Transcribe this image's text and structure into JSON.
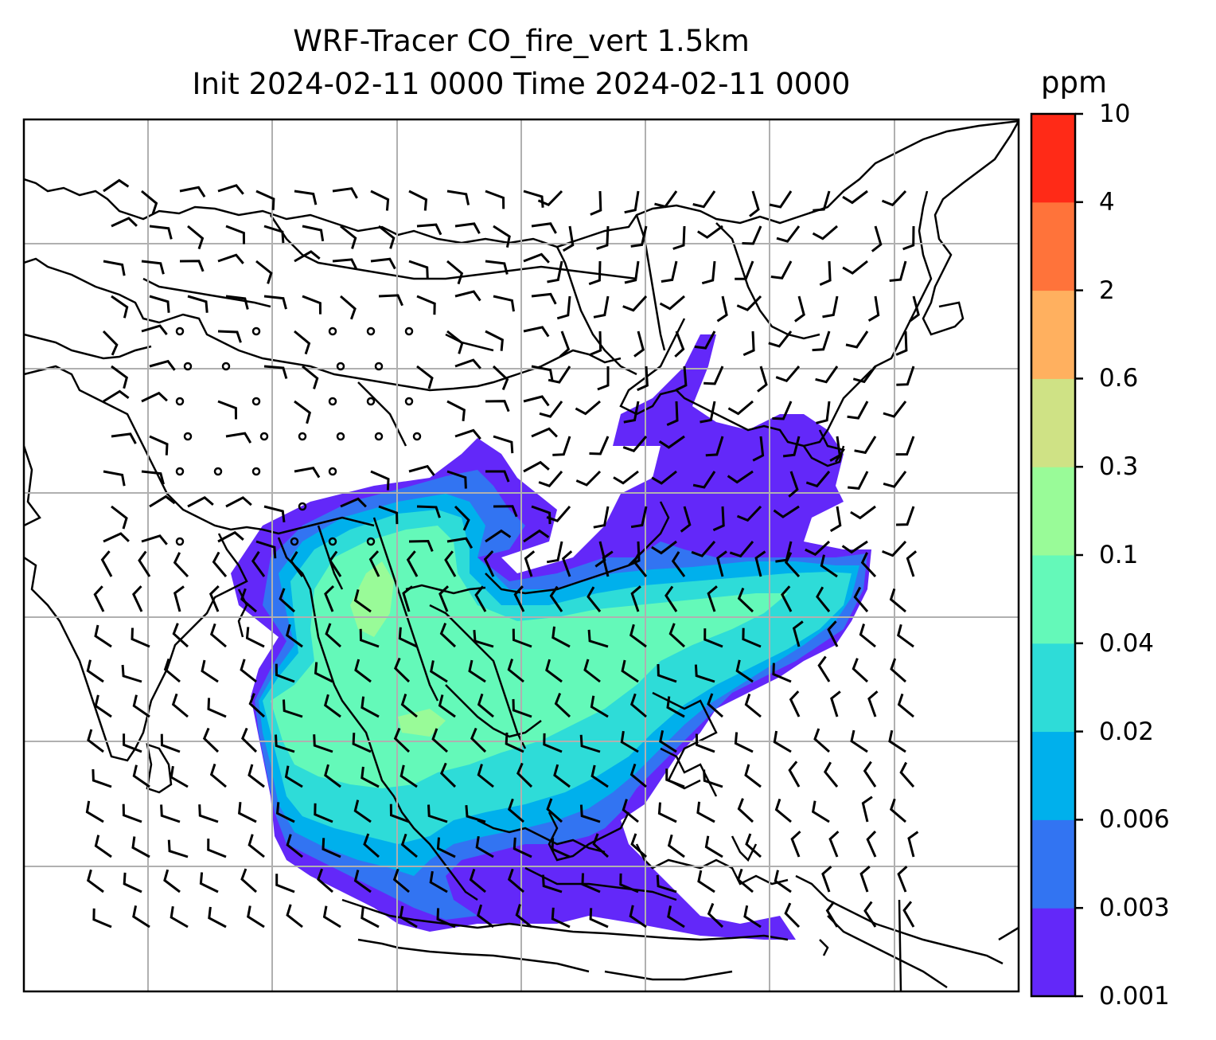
{
  "title": {
    "line1": "WRF-Tracer CO_fire_vert 1.5km",
    "line2": "Init 2024-02-11 0000 Time 2024-02-11 0000"
  },
  "colorbar": {
    "unit": "ppm",
    "levels": [
      "0.001",
      "0.003",
      "0.006",
      "0.02",
      "0.04",
      "0.1",
      "0.3",
      "0.6",
      "2",
      "4",
      "10"
    ],
    "colors": [
      "#6328f9",
      "#3274f2",
      "#00b0ec",
      "#2edcd8",
      "#64f9b9",
      "#99fb98",
      "#cfe285",
      "#ffb05f",
      "#ff733a",
      "#ff2a17"
    ]
  },
  "map": {
    "variable": "CO_fire_vert",
    "wind_barbs": true,
    "gridlines": true,
    "coastlines": true,
    "country_borders": true
  }
}
